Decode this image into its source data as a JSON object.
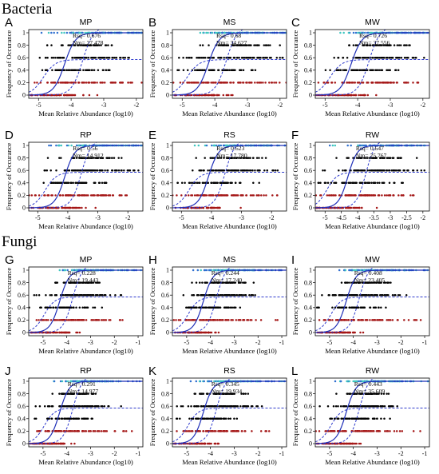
{
  "sections": [
    {
      "title": "Bacteria"
    },
    {
      "title": "Fungi"
    }
  ],
  "axis_text": {
    "ylabel": "Frequency of Occurance",
    "xlabel": "Mean Relative Abundance (log10)",
    "stat_rsq_prefix": "Rsq= ",
    "stat_nm_prefix": "Nm= "
  },
  "colors": {
    "black_points": "#000000",
    "red_points": "#a41616",
    "cyan_points": "#3ec6c0",
    "blue_points": "#2f6fd0",
    "fit_line": "#1f2fb8",
    "ci_line": "#2d39cc"
  },
  "chart_data": [
    {
      "type": "scatter",
      "panel": "A",
      "title": "MP",
      "group": "Bacteria",
      "rsq": "0.676",
      "nm": "27,478",
      "x_range": [
        -5.3,
        -1.8
      ],
      "x_ticks": [
        -5,
        -4,
        -3,
        -2
      ],
      "ylim": [
        0,
        1
      ],
      "y_ticks": [
        0,
        0.2,
        0.4,
        0.6,
        0.8,
        1
      ],
      "fit_midpoint": -4.2,
      "fit_slope": 6,
      "upper_ci_plateau": 0.57,
      "point_levels": [
        0,
        0.2,
        0.4,
        0.6,
        0.8,
        1
      ],
      "xlabel": "Mean Relative Abundance (log10)",
      "ylabel": "Frequency of Occurance"
    },
    {
      "type": "scatter",
      "panel": "B",
      "title": "MS",
      "group": "Bacteria",
      "rsq": "0.68",
      "nm": "34,627",
      "x_range": [
        -5.3,
        -1.8
      ],
      "x_ticks": [
        -5,
        -4,
        -3,
        -2
      ],
      "ylim": [
        0,
        1
      ],
      "y_ticks": [
        0,
        0.2,
        0.4,
        0.6,
        0.8,
        1
      ],
      "fit_midpoint": -4.2,
      "fit_slope": 6,
      "upper_ci_plateau": 0.57,
      "point_levels": [
        0,
        0.2,
        0.4,
        0.6,
        0.8,
        1
      ],
      "xlabel": "Mean Relative Abundance (log10)",
      "ylabel": "Frequency of Occurance"
    },
    {
      "type": "scatter",
      "panel": "C",
      "title": "MW",
      "group": "Bacteria",
      "rsq": "0.726",
      "nm": "37,556",
      "x_range": [
        -5.3,
        -1.8
      ],
      "x_ticks": [
        -5,
        -4,
        -3,
        -2
      ],
      "ylim": [
        0,
        1
      ],
      "y_ticks": [
        0,
        0.2,
        0.4,
        0.6,
        0.8,
        1
      ],
      "fit_midpoint": -4.2,
      "fit_slope": 6,
      "upper_ci_plateau": 0.57,
      "point_levels": [
        0,
        0.2,
        0.4,
        0.6,
        0.8,
        1
      ],
      "xlabel": "Mean Relative Abundance (log10)",
      "ylabel": "Frequency of Occurance"
    },
    {
      "type": "scatter",
      "panel": "D",
      "title": "RP",
      "group": "Bacteria",
      "rsq": "0.56",
      "nm": "14,912",
      "x_range": [
        -5.3,
        -1.5
      ],
      "x_ticks": [
        -5,
        -4,
        -3,
        -2
      ],
      "ylim": [
        0,
        1
      ],
      "y_ticks": [
        0,
        0.2,
        0.4,
        0.6,
        0.8,
        1
      ],
      "fit_midpoint": -4.1,
      "fit_slope": 6,
      "upper_ci_plateau": 0.57,
      "point_levels": [
        0,
        0.2,
        0.4,
        0.6,
        0.8,
        1
      ],
      "xlabel": "Mean Relative Abundance (log10)",
      "ylabel": "Frequency of Occurance"
    },
    {
      "type": "scatter",
      "panel": "E",
      "title": "RS",
      "group": "Bacteria",
      "rsq": "0.623",
      "nm": "17,780",
      "x_range": [
        -5.3,
        -1.5
      ],
      "x_ticks": [
        -5,
        -4,
        -3,
        -2
      ],
      "ylim": [
        0,
        1
      ],
      "y_ticks": [
        0,
        0.2,
        0.4,
        0.6,
        0.8,
        1
      ],
      "fit_midpoint": -4.1,
      "fit_slope": 6,
      "upper_ci_plateau": 0.57,
      "point_levels": [
        0,
        0.2,
        0.4,
        0.6,
        0.8,
        1
      ],
      "xlabel": "Mean Relative Abundance (log10)",
      "ylabel": "Frequency of Occurance"
    },
    {
      "type": "scatter",
      "panel": "F",
      "title": "RW",
      "group": "Bacteria",
      "rsq": "0.647",
      "nm": "25,767",
      "x_range": [
        -5.3,
        -1.8
      ],
      "x_ticks": [
        -5,
        -4.5,
        -4,
        -3.5,
        -3,
        -2.5,
        -2
      ],
      "ylim": [
        0,
        1
      ],
      "y_ticks": [
        0,
        0.2,
        0.4,
        0.6,
        0.8,
        1
      ],
      "fit_midpoint": -4.3,
      "fit_slope": 7,
      "upper_ci_plateau": 0.57,
      "point_levels": [
        0,
        0.2,
        0.4,
        0.6,
        0.8,
        1
      ],
      "xlabel": "Mean Relative Abundance (log10)",
      "ylabel": "Frequency of Occurance"
    },
    {
      "type": "scatter",
      "panel": "G",
      "title": "MP",
      "group": "Fungi",
      "rsq": "0.228",
      "nm": "19,443",
      "x_range": [
        -5.6,
        -0.8
      ],
      "x_ticks": [
        -5,
        -4,
        -3,
        -2,
        -1
      ],
      "ylim": [
        0,
        1
      ],
      "y_ticks": [
        0,
        0.2,
        0.4,
        0.6,
        0.8,
        1
      ],
      "fit_midpoint": -4.3,
      "fit_slope": 5,
      "upper_ci_plateau": 0.57,
      "point_levels": [
        0,
        0.2,
        0.4,
        0.6,
        0.8,
        1
      ],
      "xlabel": "Mean Relative Abundance (log10)",
      "ylabel": "Frequency of Occurance"
    },
    {
      "type": "scatter",
      "panel": "H",
      "title": "MS",
      "group": "Fungi",
      "rsq": "0.244",
      "nm": "17,240",
      "x_range": [
        -5.6,
        -0.8
      ],
      "x_ticks": [
        -5,
        -4,
        -3,
        -2,
        -1
      ],
      "ylim": [
        0,
        1
      ],
      "y_ticks": [
        0,
        0.2,
        0.4,
        0.6,
        0.8,
        1
      ],
      "fit_midpoint": -4.3,
      "fit_slope": 5,
      "upper_ci_plateau": 0.57,
      "point_levels": [
        0,
        0.2,
        0.4,
        0.6,
        0.8,
        1
      ],
      "xlabel": "Mean Relative Abundance (log10)",
      "ylabel": "Frequency of Occurance"
    },
    {
      "type": "scatter",
      "panel": "I",
      "title": "MW",
      "group": "Fungi",
      "rsq": "0.408",
      "nm": "23,405",
      "x_range": [
        -5.6,
        -0.8
      ],
      "x_ticks": [
        -5,
        -4,
        -3,
        -2,
        -1
      ],
      "ylim": [
        0,
        1
      ],
      "y_ticks": [
        0,
        0.2,
        0.4,
        0.6,
        0.8,
        1
      ],
      "fit_midpoint": -4.3,
      "fit_slope": 5,
      "upper_ci_plateau": 0.57,
      "point_levels": [
        0,
        0.2,
        0.4,
        0.6,
        0.8,
        1
      ],
      "xlabel": "Mean Relative Abundance (log10)",
      "ylabel": "Frequency of Occurance"
    },
    {
      "type": "scatter",
      "panel": "J",
      "title": "RP",
      "group": "Fungi",
      "rsq": "0.291",
      "nm": "14,977",
      "x_range": [
        -5.6,
        -0.8
      ],
      "x_ticks": [
        -5,
        -4,
        -3,
        -2,
        -1
      ],
      "ylim": [
        0,
        1
      ],
      "y_ticks": [
        0,
        0.2,
        0.4,
        0.6,
        0.8,
        1
      ],
      "fit_midpoint": -4.3,
      "fit_slope": 5,
      "upper_ci_plateau": 0.57,
      "point_levels": [
        0,
        0.2,
        0.4,
        0.6,
        0.8,
        1
      ],
      "xlabel": "Mean Relative Abundance (log10)",
      "ylabel": "Frequency of Occurance"
    },
    {
      "type": "scatter",
      "panel": "K",
      "title": "RS",
      "group": "Fungi",
      "rsq": "0.345",
      "nm": "19,934",
      "x_range": [
        -5.6,
        -0.8
      ],
      "x_ticks": [
        -5,
        -4,
        -3,
        -2,
        -1
      ],
      "ylim": [
        0,
        1
      ],
      "y_ticks": [
        0,
        0.2,
        0.4,
        0.6,
        0.8,
        1
      ],
      "fit_midpoint": -4.3,
      "fit_slope": 5,
      "upper_ci_plateau": 0.57,
      "point_levels": [
        0,
        0.2,
        0.4,
        0.6,
        0.8,
        1
      ],
      "xlabel": "Mean Relative Abundance (log10)",
      "ylabel": "Frequency of Occurance"
    },
    {
      "type": "scatter",
      "panel": "L",
      "title": "RW",
      "group": "Fungi",
      "rsq": "0.443",
      "nm": "35,609",
      "x_range": [
        -5.6,
        -0.8
      ],
      "x_ticks": [
        -5,
        -4,
        -3,
        -2,
        -1
      ],
      "ylim": [
        0,
        1
      ],
      "y_ticks": [
        0,
        0.2,
        0.4,
        0.6,
        0.8,
        1
      ],
      "fit_midpoint": -4.3,
      "fit_slope": 5,
      "upper_ci_plateau": 0.57,
      "point_levels": [
        0,
        0.2,
        0.4,
        0.6,
        0.8,
        1
      ],
      "xlabel": "Mean Relative Abundance (log10)",
      "ylabel": "Frequency of Occurance"
    }
  ]
}
